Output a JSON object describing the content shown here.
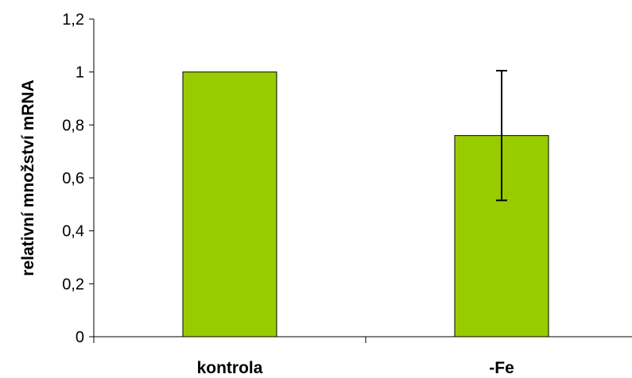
{
  "chart_data": {
    "type": "bar",
    "categories": [
      "kontrola",
      "-Fe"
    ],
    "values": [
      1.0,
      0.76
    ],
    "error_bars": [
      null,
      0.245
    ],
    "ylabel": "relativní množství mRNA",
    "ylim": [
      0,
      1.2
    ],
    "yticks": [
      0,
      0.2,
      0.4,
      0.6,
      0.8,
      1,
      1.2
    ],
    "ytick_labels": [
      "0",
      "0,2",
      "0,4",
      "0,6",
      "0,8",
      "1",
      "1,2"
    ],
    "grid": false,
    "legend": "none",
    "colors": {
      "bar_fill": "#99cc00",
      "bar_stroke": "#000000",
      "axis": "#000000",
      "error_bar": "#000000"
    }
  }
}
